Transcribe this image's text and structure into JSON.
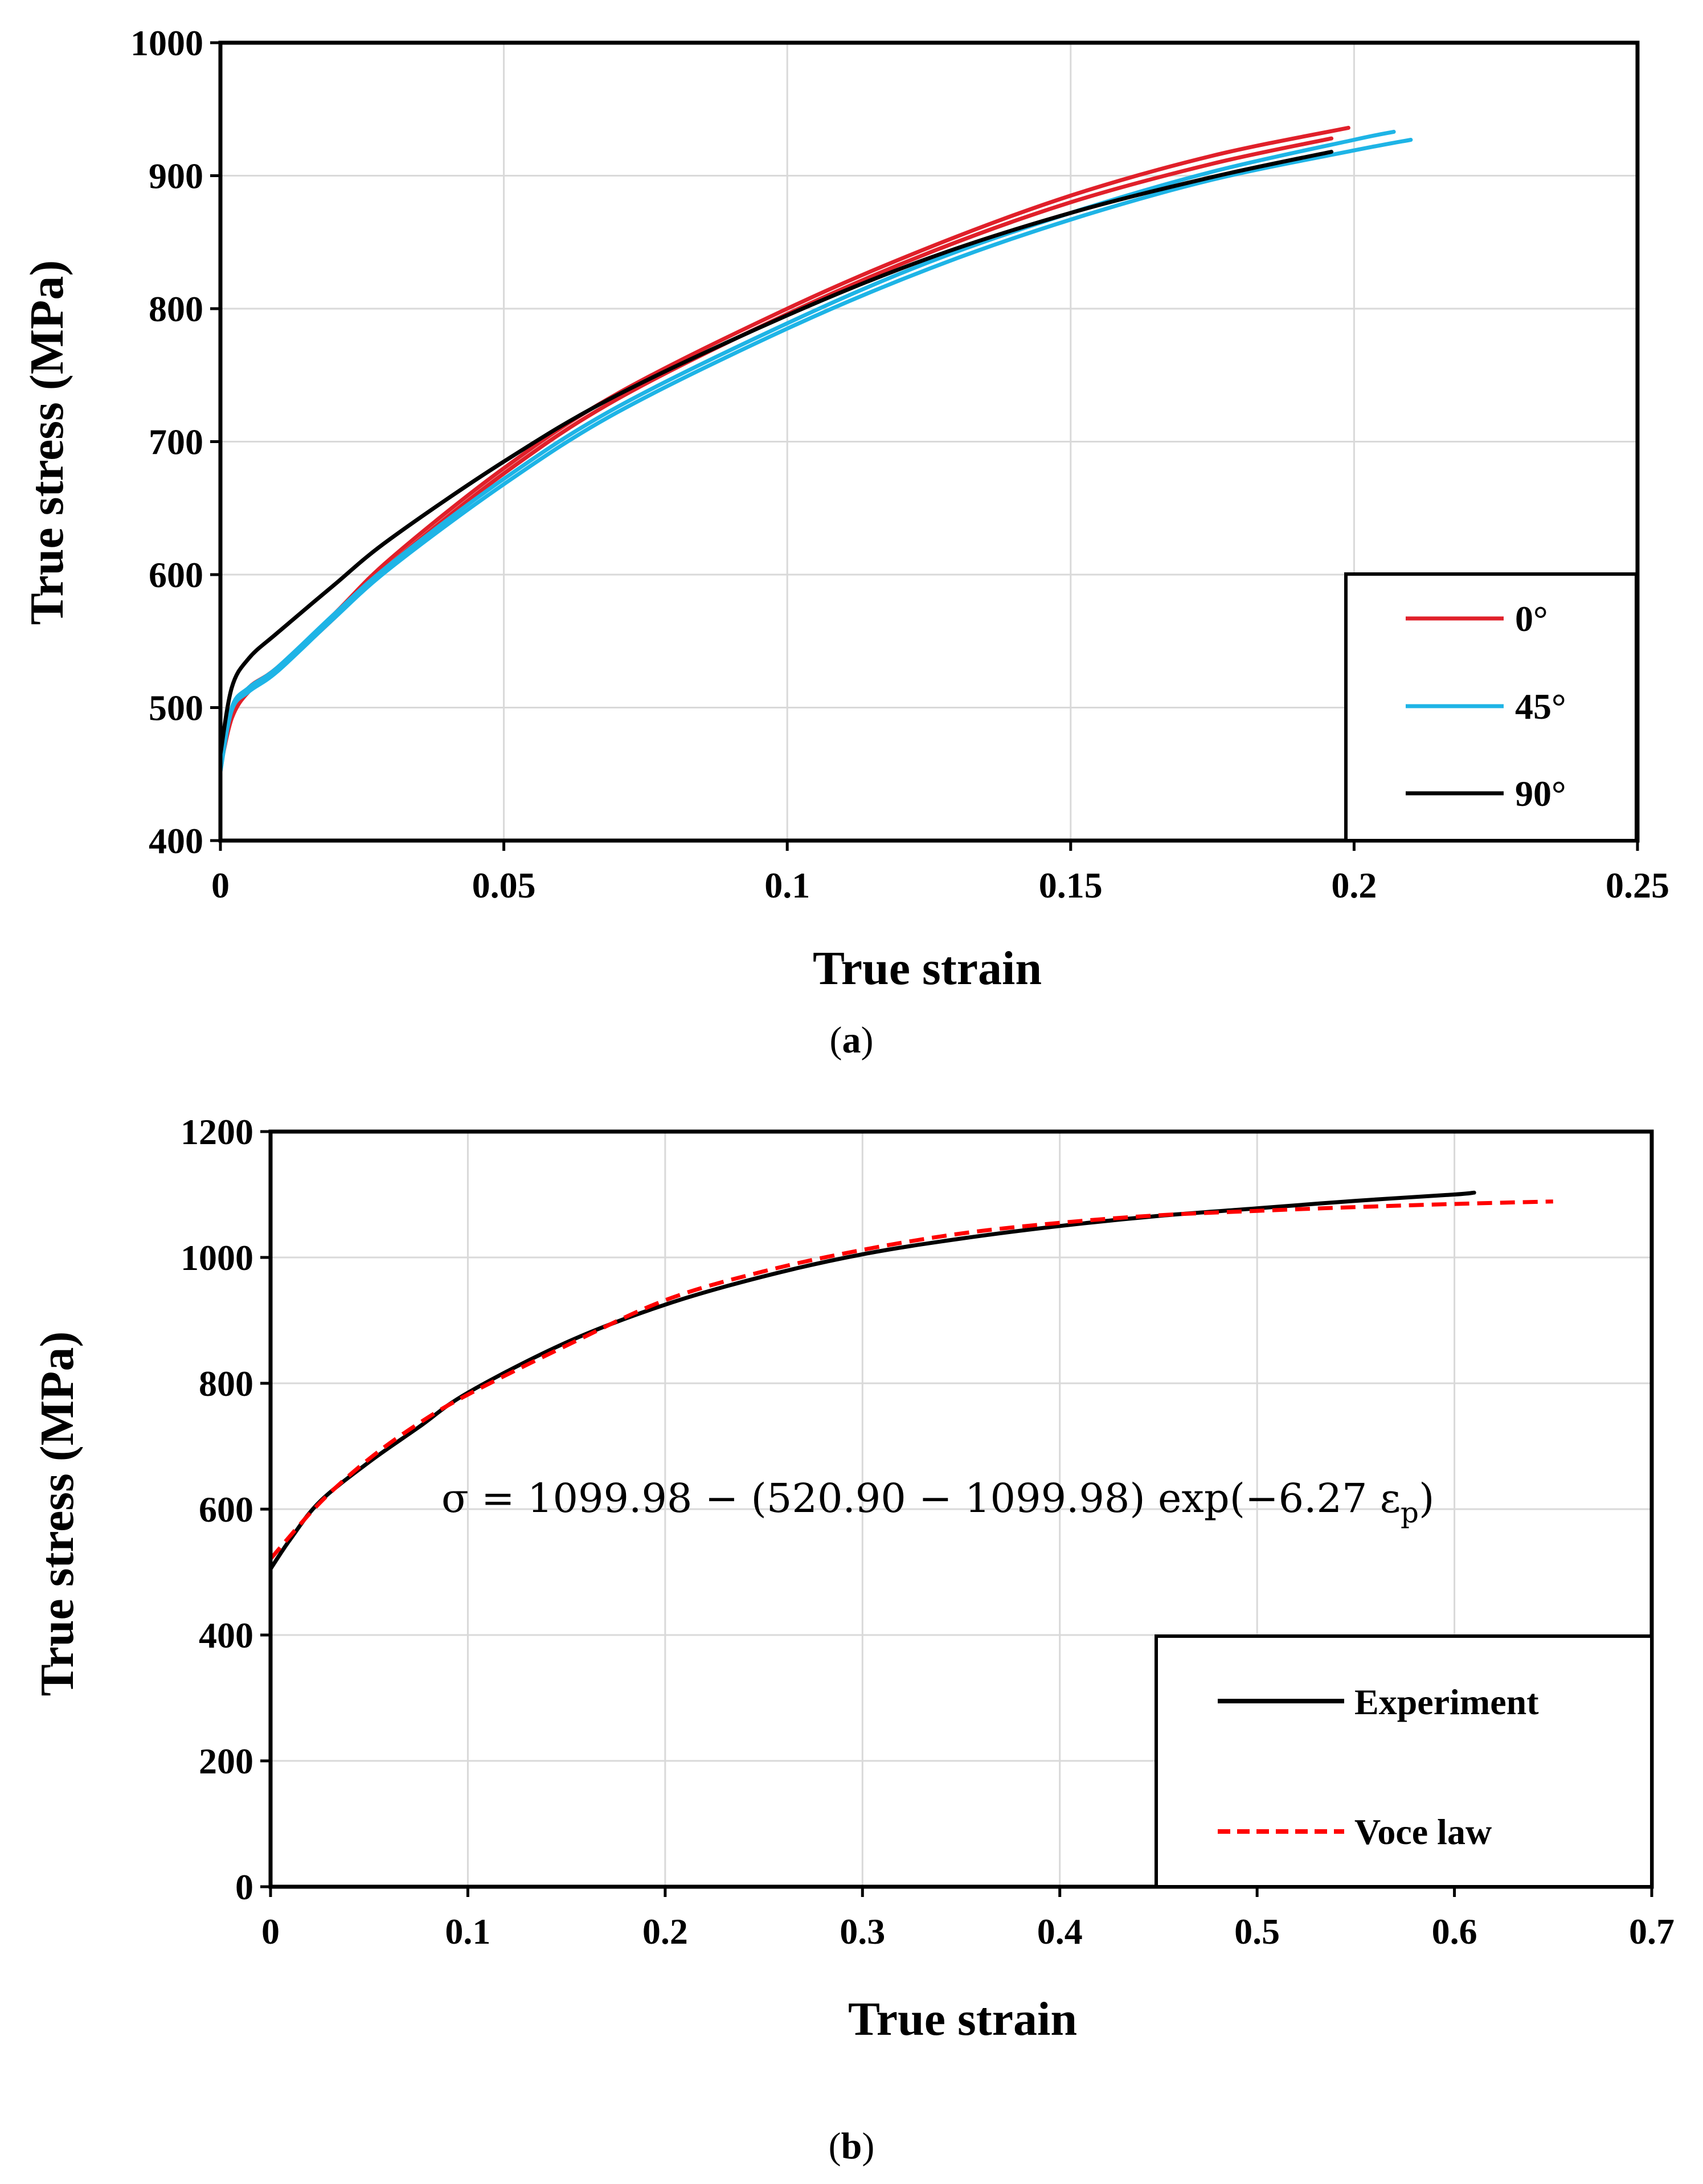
{
  "chart_data": [
    {
      "panel": "a",
      "type": "line",
      "xlabel": "True strain",
      "ylabel": "True stress (MPa)",
      "xlim": [
        0,
        0.25
      ],
      "ylim": [
        400,
        1000
      ],
      "xticks": [
        "0",
        "0.05",
        "0.1",
        "0.15",
        "0.2",
        "0.25"
      ],
      "yticks": [
        "400",
        "500",
        "600",
        "700",
        "800",
        "900",
        "1000"
      ],
      "grid": true,
      "legend_position": "bottom-right",
      "legend": [
        {
          "label": "0°",
          "color": "#e0202a"
        },
        {
          "label": "45°",
          "color": "#1eb4e6"
        },
        {
          "label": "90°",
          "color": "#000000"
        }
      ],
      "series": [
        {
          "name": "0°",
          "color": "#e0202a",
          "x": [
            0,
            0.002,
            0.005,
            0.01,
            0.02,
            0.03,
            0.05,
            0.07,
            0.1,
            0.125,
            0.15,
            0.175,
            0.199
          ],
          "y": [
            455,
            495,
            515,
            530,
            570,
            612,
            680,
            736,
            800,
            846,
            885,
            915,
            936
          ]
        },
        {
          "name": "0°",
          "color": "#e0202a",
          "x": [
            0,
            0.002,
            0.005,
            0.01,
            0.02,
            0.03,
            0.05,
            0.07,
            0.1,
            0.125,
            0.15,
            0.175,
            0.196
          ],
          "y": [
            455,
            492,
            512,
            528,
            567,
            608,
            676,
            732,
            796,
            842,
            880,
            909,
            928
          ]
        },
        {
          "name": "45°",
          "color": "#1eb4e6",
          "x": [
            0,
            0.002,
            0.005,
            0.01,
            0.02,
            0.03,
            0.05,
            0.07,
            0.1,
            0.125,
            0.15,
            0.175,
            0.2,
            0.21
          ],
          "y": [
            452,
            498,
            512,
            527,
            567,
            605,
            668,
            722,
            785,
            830,
            867,
            897,
            919,
            927
          ]
        },
        {
          "name": "45°",
          "color": "#1eb4e6",
          "x": [
            0,
            0.002,
            0.005,
            0.01,
            0.02,
            0.03,
            0.05,
            0.07,
            0.1,
            0.125,
            0.15,
            0.175,
            0.2,
            0.207
          ],
          "y": [
            452,
            500,
            515,
            530,
            570,
            608,
            672,
            726,
            789,
            835,
            872,
            903,
            927,
            933
          ]
        },
        {
          "name": "90°",
          "color": "#000000",
          "x": [
            0,
            0.002,
            0.005,
            0.01,
            0.02,
            0.03,
            0.05,
            0.07,
            0.1,
            0.125,
            0.15,
            0.175,
            0.196
          ],
          "y": [
            465,
            515,
            537,
            556,
            592,
            627,
            685,
            735,
            795,
            838,
            872,
            899,
            918
          ]
        }
      ]
    },
    {
      "panel": "b",
      "type": "line",
      "xlabel": "True strain",
      "ylabel": "True stress (MPa)",
      "xlim": [
        0,
        0.7
      ],
      "ylim": [
        0,
        1200
      ],
      "xticks": [
        "0",
        "0.1",
        "0.2",
        "0.3",
        "0.4",
        "0.5",
        "0.6",
        "0.7"
      ],
      "yticks": [
        "0",
        "200",
        "400",
        "600",
        "800",
        "1000",
        "1200"
      ],
      "grid": true,
      "legend_position": "bottom-right",
      "legend": [
        {
          "label": "Experiment",
          "color": "#000000",
          "style": "solid"
        },
        {
          "label": "Voce law",
          "color": "#ff0000",
          "style": "dashed"
        }
      ],
      "annotation": "σ = 1099.98 − (520.90 − 1099.98) exp(−6.27 ε",
      "annotation_subscript": "p",
      "annotation_close": ")",
      "series": [
        {
          "name": "Experiment",
          "color": "#000000",
          "style": "solid",
          "x": [
            0,
            0.01,
            0.025,
            0.05,
            0.075,
            0.1,
            0.15,
            0.2,
            0.25,
            0.3,
            0.35,
            0.4,
            0.45,
            0.5,
            0.55,
            0.6,
            0.61
          ],
          "y": [
            505,
            552,
            612,
            675,
            730,
            785,
            865,
            925,
            970,
            1005,
            1030,
            1050,
            1066,
            1078,
            1090,
            1100,
            1103
          ]
        },
        {
          "name": "Voce law",
          "color": "#ff0000",
          "style": "dashed",
          "x": [
            0,
            0.025,
            0.05,
            0.075,
            0.1,
            0.15,
            0.2,
            0.25,
            0.3,
            0.35,
            0.4,
            0.45,
            0.5,
            0.55,
            0.6,
            0.65
          ],
          "y": [
            521,
            610,
            680,
            736,
            782,
            860,
            932,
            978,
            1012,
            1038,
            1055,
            1067,
            1074,
            1080,
            1085,
            1089
          ]
        }
      ]
    }
  ],
  "labels": {
    "panel_a_open": "(",
    "panel_a": "a",
    "panel_a_close": ")",
    "panel_b_open": "(",
    "panel_b": "b",
    "panel_b_close": ")"
  }
}
